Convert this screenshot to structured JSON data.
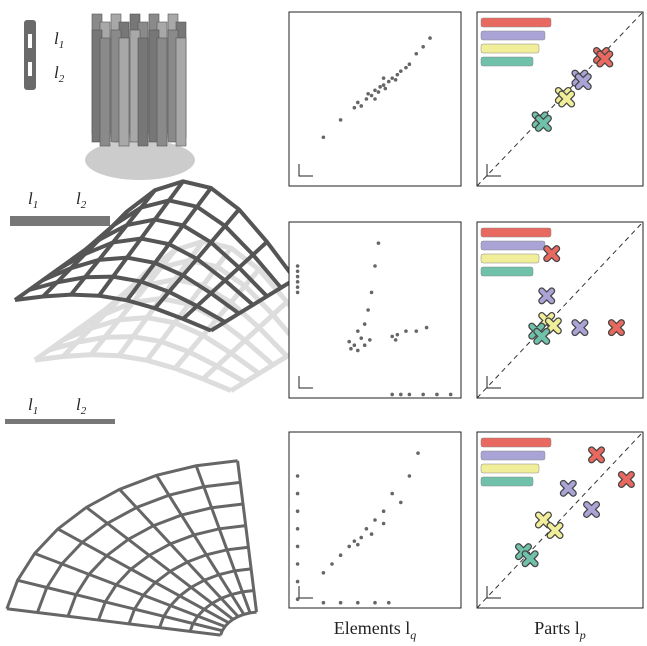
{
  "figure": {
    "rows": [
      {
        "labels": [
          {
            "text": "l",
            "sub": "1"
          },
          {
            "text": "l",
            "sub": "2"
          }
        ]
      },
      {
        "labels": [
          {
            "text": "l",
            "sub": "1"
          },
          {
            "text": "l",
            "sub": "2"
          }
        ]
      },
      {
        "labels": [
          {
            "text": "l",
            "sub": "1"
          },
          {
            "text": "l",
            "sub": "2"
          }
        ]
      }
    ],
    "captions": [
      {
        "text": "Elements l",
        "sub": "q"
      },
      {
        "text": "Parts l",
        "sub": "p"
      }
    ]
  },
  "chart_data": [
    {
      "type": "scatter",
      "marker": "dot",
      "xlim": [
        0,
        100
      ],
      "ylim": [
        0,
        100
      ],
      "diagonal": false,
      "series": [
        {
          "color": "#666666",
          "x": [
            20,
            30,
            38,
            40,
            42,
            45,
            46,
            48,
            50,
            52,
            53,
            55,
            56,
            58,
            60,
            62,
            63,
            65,
            68,
            70,
            74,
            78,
            82,
            55,
            50
          ],
          "values": [
            28,
            38,
            45,
            48,
            46,
            50,
            53,
            52,
            55,
            54,
            57,
            58,
            56,
            60,
            62,
            61,
            64,
            66,
            68,
            70,
            76,
            80,
            85,
            62,
            50
          ]
        }
      ]
    },
    {
      "type": "scatter",
      "marker": "cross",
      "xlim": [
        0,
        100
      ],
      "ylim": [
        0,
        100
      ],
      "diagonal": true,
      "series": [
        {
          "color": "#e8695f",
          "x": [
            75,
            77
          ],
          "values": [
            75,
            73
          ]
        },
        {
          "color": "#a9a3d6",
          "x": [
            62,
            64
          ],
          "values": [
            62,
            60
          ]
        },
        {
          "color": "#f1ee9a",
          "x": [
            52,
            54
          ],
          "values": [
            52,
            50
          ]
        },
        {
          "color": "#6fc1aa",
          "x": [
            38,
            40
          ],
          "values": [
            38,
            36
          ]
        }
      ]
    },
    {
      "type": "scatter",
      "marker": "dot",
      "xlim": [
        0,
        100
      ],
      "ylim": [
        0,
        100
      ],
      "diagonal": false,
      "series": [
        {
          "color": "#666666",
          "x": [
            5,
            5,
            5,
            5,
            5,
            5,
            52,
            50,
            48,
            46,
            44,
            40,
            35,
            38,
            42,
            36,
            44,
            40,
            47,
            60,
            63,
            68,
            74,
            80,
            62,
            60,
            65,
            70,
            78,
            86,
            94
          ],
          "values": [
            60,
            63,
            66,
            69,
            72,
            75,
            88,
            75,
            60,
            50,
            42,
            38,
            32,
            30,
            34,
            28,
            30,
            27,
            33,
            35,
            36,
            38,
            38,
            40,
            33,
            2,
            2,
            2,
            2,
            2,
            2
          ]
        }
      ]
    },
    {
      "type": "scatter",
      "marker": "cross",
      "xlim": [
        0,
        100
      ],
      "ylim": [
        0,
        100
      ],
      "diagonal": true,
      "series": [
        {
          "color": "#e8695f",
          "x": [
            45,
            84
          ],
          "values": [
            82,
            40
          ]
        },
        {
          "color": "#a9a3d6",
          "x": [
            42,
            62
          ],
          "values": [
            58,
            40
          ]
        },
        {
          "color": "#f1ee9a",
          "x": [
            42,
            46
          ],
          "values": [
            44,
            41
          ]
        },
        {
          "color": "#6fc1aa",
          "x": [
            36,
            39
          ],
          "values": [
            38,
            35
          ]
        }
      ]
    },
    {
      "type": "scatter",
      "marker": "dot",
      "xlim": [
        0,
        100
      ],
      "ylim": [
        0,
        100
      ],
      "diagonal": false,
      "series": [
        {
          "color": "#666666",
          "x": [
            5,
            5,
            5,
            5,
            5,
            5,
            5,
            5,
            20,
            25,
            30,
            35,
            38,
            40,
            42,
            45,
            48,
            50,
            55,
            60,
            70,
            75,
            65,
            55,
            20,
            30,
            40,
            50,
            58
          ],
          "values": [
            5,
            15,
            25,
            35,
            45,
            55,
            65,
            75,
            20,
            25,
            30,
            35,
            38,
            36,
            40,
            45,
            42,
            50,
            55,
            65,
            75,
            88,
            60,
            48,
            3,
            3,
            3,
            3,
            3
          ]
        }
      ]
    },
    {
      "type": "scatter",
      "marker": "cross",
      "xlim": [
        0,
        100
      ],
      "ylim": [
        0,
        100
      ],
      "diagonal": true,
      "series": [
        {
          "color": "#e8695f",
          "x": [
            72,
            90
          ],
          "values": [
            87,
            73
          ]
        },
        {
          "color": "#a9a3d6",
          "x": [
            55,
            69
          ],
          "values": [
            68,
            56
          ]
        },
        {
          "color": "#f1ee9a",
          "x": [
            40,
            47
          ],
          "values": [
            50,
            44
          ]
        },
        {
          "color": "#6fc1aa",
          "x": [
            28,
            32
          ],
          "values": [
            32,
            28
          ]
        }
      ]
    }
  ]
}
